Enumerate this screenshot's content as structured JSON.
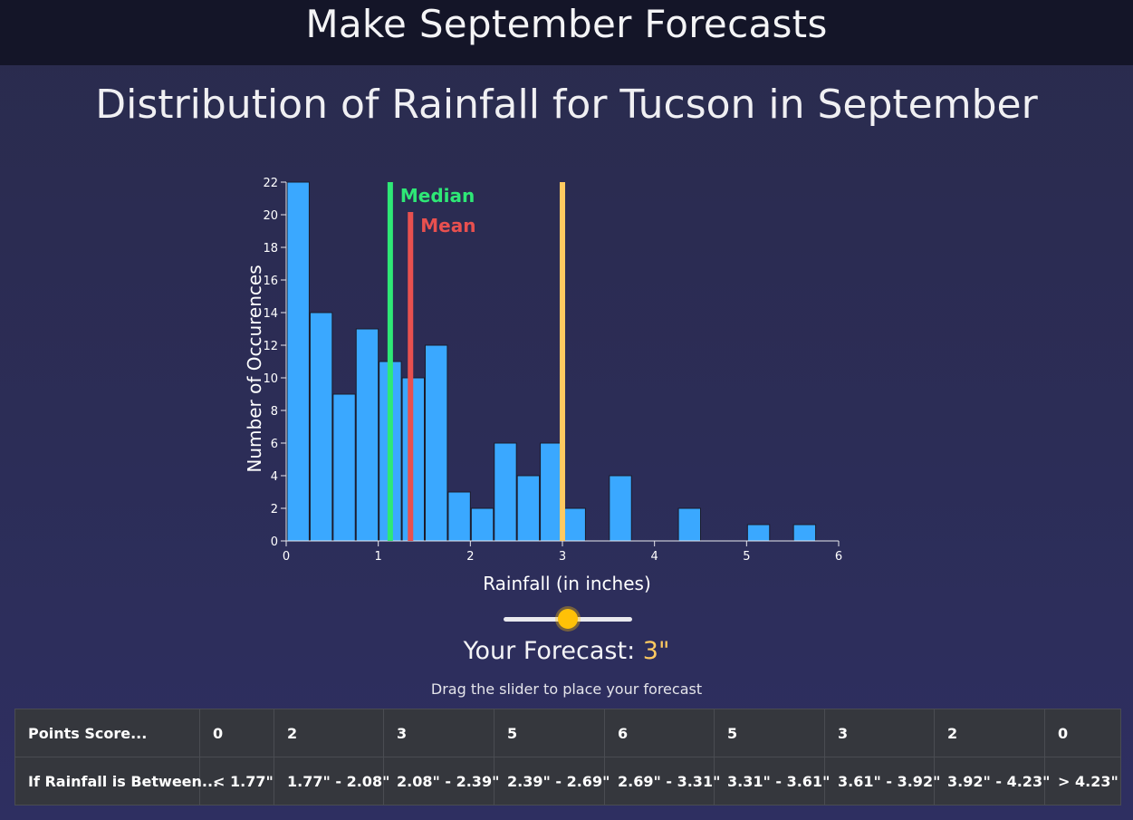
{
  "header": {
    "title": "Make September Forecasts"
  },
  "chart_data": {
    "type": "bar",
    "title": "Distribution of Rainfall for Tucson in September",
    "xlabel": "Rainfall (in inches)",
    "ylabel": "Number of Occurences",
    "xlim": [
      0,
      6
    ],
    "ylim": [
      0,
      22
    ],
    "xticks": [
      0,
      1,
      2,
      3,
      4,
      5,
      6
    ],
    "yticks": [
      0,
      2,
      4,
      6,
      8,
      10,
      12,
      14,
      16,
      18,
      20,
      22
    ],
    "bin_width": 0.25,
    "bins": [
      {
        "x0": 0.0,
        "count": 22
      },
      {
        "x0": 0.25,
        "count": 14
      },
      {
        "x0": 0.5,
        "count": 9
      },
      {
        "x0": 0.75,
        "count": 13
      },
      {
        "x0": 1.0,
        "count": 11
      },
      {
        "x0": 1.25,
        "count": 10
      },
      {
        "x0": 1.5,
        "count": 12
      },
      {
        "x0": 1.75,
        "count": 3
      },
      {
        "x0": 2.0,
        "count": 2
      },
      {
        "x0": 2.25,
        "count": 6
      },
      {
        "x0": 2.5,
        "count": 4
      },
      {
        "x0": 2.75,
        "count": 6
      },
      {
        "x0": 3.0,
        "count": 2
      },
      {
        "x0": 3.5,
        "count": 4
      },
      {
        "x0": 4.25,
        "count": 2
      },
      {
        "x0": 5.0,
        "count": 1
      },
      {
        "x0": 5.5,
        "count": 1
      }
    ],
    "bar_color": "#3aa8ff",
    "median": {
      "label": "Median",
      "value": 1.13,
      "color": "#2ee876"
    },
    "mean": {
      "label": "Mean",
      "value": 1.35,
      "color": "#e8504f"
    },
    "forecast_line": {
      "value": 3.0,
      "color": "#ffca60"
    }
  },
  "forecast": {
    "label": "Your Forecast: ",
    "value": "3\"",
    "hint": "Drag the slider to place your forecast",
    "slider_fraction": 0.5
  },
  "score_table": {
    "row_labels": [
      "Points Score...",
      "If Rainfall is Between..."
    ],
    "points": [
      "0",
      "2",
      "3",
      "5",
      "6",
      "5",
      "3",
      "2",
      "0"
    ],
    "ranges": [
      "< 1.77\"",
      "1.77\" - 2.08\"",
      "2.08\" - 2.39\"",
      "2.39\" - 2.69\"",
      "2.69\" - 3.31\"",
      "3.31\" - 3.61\"",
      "3.61\" - 3.92\"",
      "3.92\" - 4.23\"",
      "> 4.23\""
    ]
  }
}
